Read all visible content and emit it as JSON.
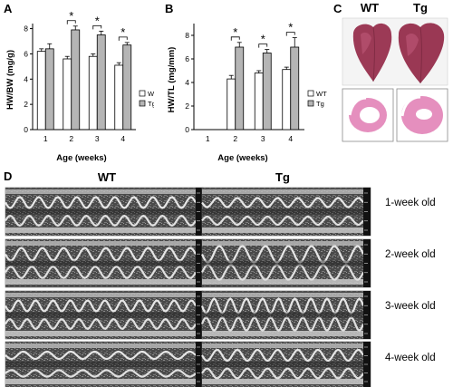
{
  "panels": {
    "a": "A",
    "b": "B",
    "c": "C",
    "d": "D"
  },
  "chart_data": [
    {
      "type": "bar",
      "panel": "A",
      "ylabel": "HW/BW (mg/g)",
      "xlabel": "Age (weeks)",
      "categories": [
        "1",
        "2",
        "3",
        "4"
      ],
      "yticks": [
        "0",
        "2",
        "4",
        "6",
        "8"
      ],
      "ylim": [
        0,
        8.4
      ],
      "series": [
        {
          "name": "WT",
          "values": [
            6.2,
            5.6,
            5.8,
            5.1
          ],
          "errors": [
            0.2,
            0.2,
            0.2,
            0.2
          ],
          "color": "#ffffff"
        },
        {
          "name": "Tg",
          "values": [
            6.4,
            7.9,
            7.5,
            6.7
          ],
          "errors": [
            0.4,
            0.3,
            0.3,
            0.2
          ],
          "color": "#b5b5b5"
        }
      ],
      "significance": [
        null,
        "*",
        "*",
        "*"
      ],
      "legend": "right"
    },
    {
      "type": "bar",
      "panel": "B",
      "ylabel": "HW/TL (mg/mm)",
      "xlabel": "Age (weeks)",
      "categories": [
        "1",
        "2",
        "3",
        "4"
      ],
      "yticks": [
        "0",
        "2",
        "4",
        "6",
        "8"
      ],
      "ylim": [
        0,
        9
      ],
      "series": [
        {
          "name": "WT",
          "values": [
            null,
            4.3,
            4.8,
            5.1
          ],
          "errors": [
            0,
            0.3,
            0.2,
            0.2
          ],
          "color": "#ffffff"
        },
        {
          "name": "Tg",
          "values": [
            null,
            7.0,
            6.5,
            7.0
          ],
          "errors": [
            0,
            0.4,
            0.3,
            0.8
          ],
          "color": "#b5b5b5"
        }
      ],
      "significance": [
        null,
        "*",
        "*",
        "*"
      ],
      "legend": "right"
    }
  ],
  "panel_c": {
    "wt_label": "WT",
    "tg_label": "Tg"
  },
  "panel_d": {
    "wt_label": "WT",
    "tg_label": "Tg",
    "rows": [
      {
        "label": "1-week old"
      },
      {
        "label": "2-week old"
      },
      {
        "label": "3-week old"
      },
      {
        "label": "4-week old"
      }
    ]
  },
  "colors": {
    "wt_bar": "#ffffff",
    "tg_bar": "#b5b5b5",
    "heart": "#9c3a56",
    "section": "#e58fbe",
    "echo_bg": "#3a3a3a"
  }
}
